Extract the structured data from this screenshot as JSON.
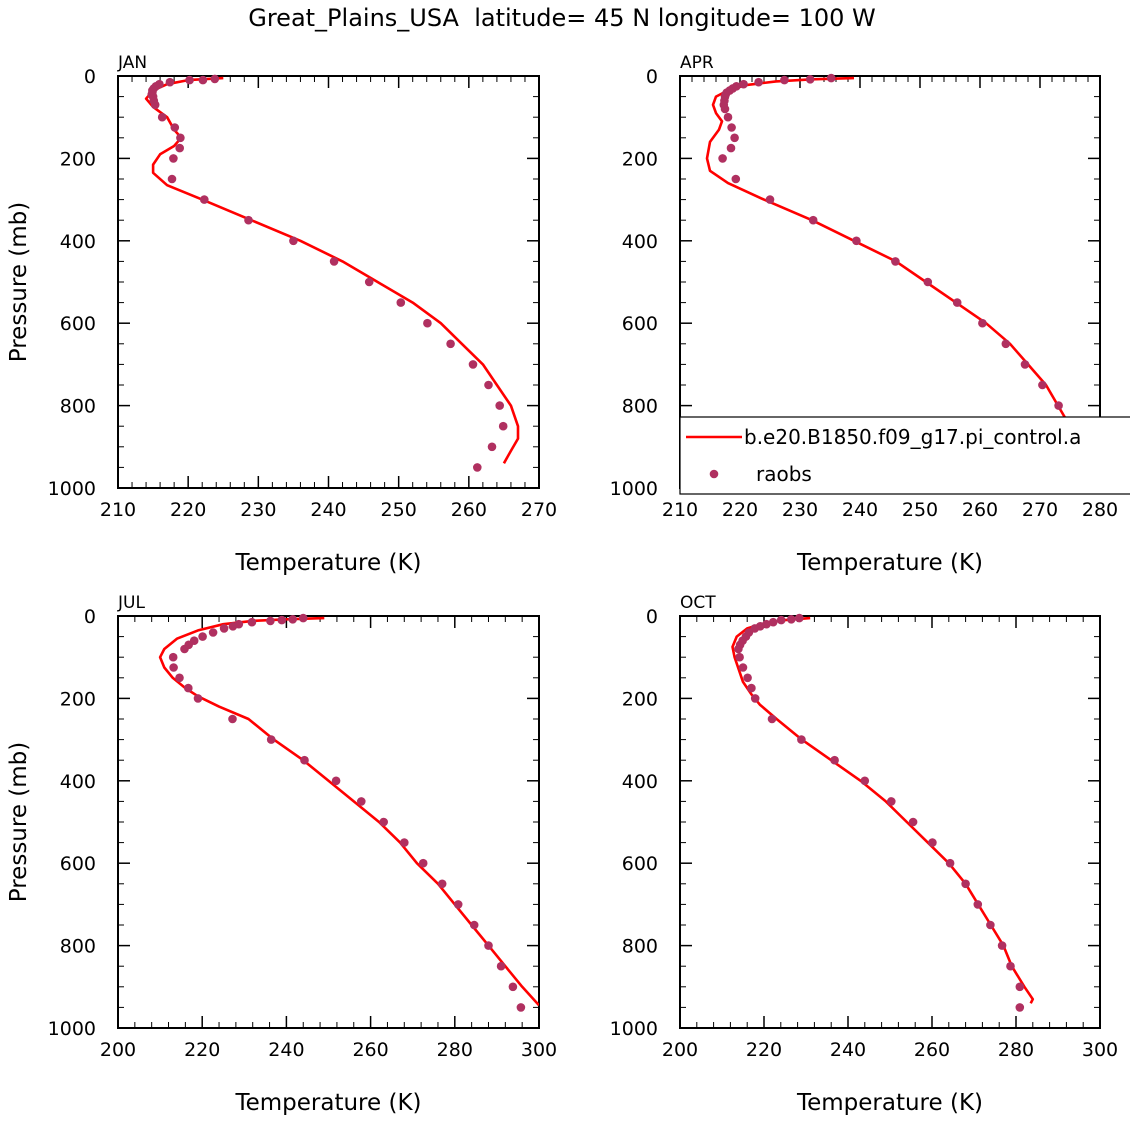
{
  "title": "Great_Plains_USA  latitude= 45 N longitude= 100 W",
  "colors": {
    "model": "#ff0000",
    "obs": "#b03060",
    "axis": "#000000"
  },
  "legend": {
    "model_label": "b.e20.B1850.f09_g17.pi_control.a",
    "obs_label": "raobs",
    "placement": "right of APR panel, near bottom"
  },
  "chart_data": [
    {
      "type": "line",
      "month": "JAN",
      "xlabel": "Temperature (K)",
      "ylabel": "Pressure (mb)",
      "xlim": [
        210,
        270
      ],
      "ylim": [
        1000,
        0
      ],
      "xticks": [
        "210",
        "220",
        "230",
        "240",
        "250",
        "260",
        "270"
      ],
      "yticks": [
        "0",
        "200",
        "400",
        "600",
        "800",
        "1000"
      ],
      "series": [
        {
          "name": "b.e20.B1850.f09_g17.pi_control.a",
          "kind": "line",
          "points": [
            [
              225,
              5
            ],
            [
              220,
              10
            ],
            [
              217,
              20
            ],
            [
              215,
              35
            ],
            [
              214,
              55
            ],
            [
              215,
              75
            ],
            [
              217,
              100
            ],
            [
              218,
              130
            ],
            [
              219,
              150
            ],
            [
              218,
              170
            ],
            [
              216,
              190
            ],
            [
              215,
              215
            ],
            [
              215,
              235
            ],
            [
              217,
              265
            ],
            [
              222,
              300
            ],
            [
              229,
              350
            ],
            [
              236,
              400
            ],
            [
              242,
              450
            ],
            [
              247,
              500
            ],
            [
              252,
              550
            ],
            [
              256,
              600
            ],
            [
              259,
              650
            ],
            [
              262,
              700
            ],
            [
              264,
              750
            ],
            [
              266,
              800
            ],
            [
              267,
              850
            ],
            [
              267,
              880
            ],
            [
              266,
              910
            ],
            [
              265,
              940
            ]
          ]
        },
        {
          "name": "raobs",
          "kind": "scatter",
          "points": [
            [
              223.8,
              7
            ],
            [
              222.1,
              10
            ],
            [
              220.2,
              10
            ],
            [
              217.4,
              15
            ],
            [
              215.9,
              20
            ],
            [
              215.4,
              25
            ],
            [
              215.1,
              30
            ],
            [
              214.9,
              35
            ],
            [
              214.9,
              40
            ],
            [
              214.8,
              45
            ],
            [
              215.0,
              50
            ],
            [
              215.1,
              60
            ],
            [
              215.3,
              70
            ],
            [
              216.3,
              100
            ],
            [
              218.1,
              125
            ],
            [
              218.9,
              150
            ],
            [
              218.8,
              175
            ],
            [
              217.9,
              200
            ],
            [
              217.7,
              250
            ],
            [
              222.3,
              300
            ],
            [
              228.6,
              350
            ],
            [
              235.0,
              400
            ],
            [
              240.8,
              450
            ],
            [
              245.8,
              500
            ],
            [
              250.3,
              550
            ],
            [
              254.1,
              600
            ],
            [
              257.4,
              650
            ],
            [
              260.6,
              700
            ],
            [
              262.8,
              750
            ],
            [
              264.4,
              800
            ],
            [
              264.9,
              850
            ],
            [
              263.3,
              900
            ],
            [
              261.2,
              950
            ]
          ]
        }
      ]
    },
    {
      "type": "line",
      "month": "APR",
      "xlabel": "Temperature (K)",
      "ylabel": "Pressure (mb)",
      "xlim": [
        210,
        280
      ],
      "ylim": [
        1000,
        0
      ],
      "xticks": [
        "210",
        "220",
        "230",
        "240",
        "250",
        "260",
        "270",
        "280"
      ],
      "yticks": [
        "0",
        "200",
        "400",
        "600",
        "800",
        "1000"
      ],
      "series": [
        {
          "name": "b.e20.B1850.f09_g17.pi_control.a",
          "kind": "line",
          "points": [
            [
              239,
              5
            ],
            [
              232,
              8
            ],
            [
              226,
              13
            ],
            [
              221,
              22
            ],
            [
              218,
              35
            ],
            [
              216,
              50
            ],
            [
              215.5,
              70
            ],
            [
              216,
              90
            ],
            [
              217,
              110
            ],
            [
              216.5,
              130
            ],
            [
              215,
              160
            ],
            [
              214.5,
              200
            ],
            [
              215,
              230
            ],
            [
              218,
              260
            ],
            [
              224,
              300
            ],
            [
              232,
              350
            ],
            [
              239,
              400
            ],
            [
              246,
              450
            ],
            [
              251,
              500
            ],
            [
              256,
              550
            ],
            [
              261,
              600
            ],
            [
              265,
              650
            ],
            [
              268,
              700
            ],
            [
              271,
              750
            ],
            [
              273,
              800
            ],
            [
              275,
              850
            ],
            [
              277,
              900
            ],
            [
              279,
              950
            ],
            [
              280,
              1000
            ]
          ]
        },
        {
          "name": "raobs",
          "kind": "scatter",
          "points": [
            [
              235.2,
              5
            ],
            [
              231.7,
              8
            ],
            [
              227.4,
              10
            ],
            [
              223.1,
              15
            ],
            [
              220.6,
              20
            ],
            [
              219.4,
              25
            ],
            [
              218.8,
              30
            ],
            [
              218.3,
              35
            ],
            [
              217.8,
              40
            ],
            [
              217.6,
              45
            ],
            [
              217.5,
              50
            ],
            [
              217.4,
              60
            ],
            [
              217.3,
              70
            ],
            [
              217.5,
              80
            ],
            [
              218.0,
              100
            ],
            [
              218.6,
              125
            ],
            [
              219.1,
              150
            ],
            [
              218.5,
              175
            ],
            [
              217.1,
              200
            ],
            [
              219.3,
              250
            ],
            [
              225.0,
              300
            ],
            [
              232.2,
              350
            ],
            [
              239.4,
              400
            ],
            [
              245.9,
              450
            ],
            [
              251.3,
              500
            ],
            [
              256.2,
              550
            ],
            [
              260.4,
              600
            ],
            [
              264.3,
              650
            ],
            [
              267.5,
              700
            ],
            [
              270.4,
              750
            ],
            [
              273.1,
              800
            ],
            [
              275.5,
              850
            ],
            [
              278.2,
              900
            ],
            [
              280.0,
              950
            ]
          ]
        }
      ]
    },
    {
      "type": "line",
      "month": "JUL",
      "xlabel": "Temperature (K)",
      "ylabel": "Pressure (mb)",
      "xlim": [
        200,
        300
      ],
      "ylim": [
        1000,
        0
      ],
      "xticks": [
        "200",
        "220",
        "240",
        "260",
        "280",
        "300"
      ],
      "yticks": [
        "0",
        "200",
        "400",
        "600",
        "800",
        "1000"
      ],
      "series": [
        {
          "name": "b.e20.B1850.f09_g17.pi_control.a",
          "kind": "line",
          "points": [
            [
              249,
              5
            ],
            [
              240,
              8
            ],
            [
              232,
              12
            ],
            [
              225,
              20
            ],
            [
              219,
              35
            ],
            [
              214,
              55
            ],
            [
              211,
              80
            ],
            [
              210,
              100
            ],
            [
              211,
              125
            ],
            [
              213,
              150
            ],
            [
              216,
              175
            ],
            [
              219,
              195
            ],
            [
              224,
              220
            ],
            [
              231,
              250
            ],
            [
              237,
              300
            ],
            [
              244,
              350
            ],
            [
              250,
              400
            ],
            [
              256,
              450
            ],
            [
              262,
              500
            ],
            [
              267,
              550
            ],
            [
              271,
              600
            ],
            [
              276,
              650
            ],
            [
              280,
              700
            ],
            [
              284,
              750
            ],
            [
              288,
              800
            ],
            [
              292,
              850
            ],
            [
              296,
              900
            ],
            [
              300,
              945
            ]
          ]
        },
        {
          "name": "raobs",
          "kind": "scatter",
          "points": [
            [
              244.0,
              5
            ],
            [
              241.5,
              8
            ],
            [
              238.9,
              10
            ],
            [
              236.2,
              12
            ],
            [
              231.8,
              15
            ],
            [
              228.7,
              20
            ],
            [
              227.3,
              25
            ],
            [
              225.2,
              30
            ],
            [
              222.6,
              40
            ],
            [
              220.1,
              50
            ],
            [
              218.1,
              60
            ],
            [
              216.8,
              70
            ],
            [
              215.8,
              80
            ],
            [
              213.1,
              100
            ],
            [
              213.2,
              125
            ],
            [
              214.6,
              150
            ],
            [
              216.7,
              175
            ],
            [
              219.0,
              200
            ],
            [
              227.2,
              250
            ],
            [
              236.4,
              300
            ],
            [
              244.3,
              350
            ],
            [
              251.8,
              400
            ],
            [
              257.8,
              450
            ],
            [
              263.1,
              500
            ],
            [
              268.0,
              550
            ],
            [
              272.5,
              600
            ],
            [
              277.0,
              650
            ],
            [
              280.8,
              700
            ],
            [
              284.6,
              750
            ],
            [
              288.0,
              800
            ],
            [
              291.0,
              850
            ],
            [
              293.8,
              900
            ],
            [
              295.7,
              950
            ]
          ]
        }
      ]
    },
    {
      "type": "line",
      "month": "OCT",
      "xlabel": "Temperature (K)",
      "ylabel": "Pressure (mb)",
      "xlim": [
        200,
        300
      ],
      "ylim": [
        1000,
        0
      ],
      "xticks": [
        "200",
        "220",
        "240",
        "260",
        "280",
        "300"
      ],
      "yticks": [
        "0",
        "200",
        "400",
        "600",
        "800",
        "1000"
      ],
      "series": [
        {
          "name": "b.e20.B1850.f09_g17.pi_control.a",
          "kind": "line",
          "points": [
            [
              231,
              5
            ],
            [
              225,
              10
            ],
            [
              220,
              18
            ],
            [
              216,
              30
            ],
            [
              213.5,
              50
            ],
            [
              212.5,
              75
            ],
            [
              213,
              100
            ],
            [
              214,
              130
            ],
            [
              215,
              160
            ],
            [
              217,
              190
            ],
            [
              219,
              215
            ],
            [
              223,
              250
            ],
            [
              229,
              300
            ],
            [
              236,
              350
            ],
            [
              243,
              400
            ],
            [
              249,
              450
            ],
            [
              254,
              500
            ],
            [
              259,
              550
            ],
            [
              264,
              600
            ],
            [
              268,
              650
            ],
            [
              271,
              700
            ],
            [
              274,
              750
            ],
            [
              277,
              800
            ],
            [
              279,
              850
            ],
            [
              282,
              900
            ],
            [
              284,
              930
            ],
            [
              283.5,
              940
            ]
          ]
        },
        {
          "name": "raobs",
          "kind": "scatter",
          "points": [
            [
              228.4,
              5
            ],
            [
              226.5,
              8
            ],
            [
              224.1,
              10
            ],
            [
              222.2,
              15
            ],
            [
              220.6,
              20
            ],
            [
              219.1,
              25
            ],
            [
              217.8,
              30
            ],
            [
              216.4,
              40
            ],
            [
              215.7,
              50
            ],
            [
              214.9,
              60
            ],
            [
              214.3,
              70
            ],
            [
              213.9,
              80
            ],
            [
              214.2,
              100
            ],
            [
              215.0,
              125
            ],
            [
              216.1,
              150
            ],
            [
              217.0,
              175
            ],
            [
              217.9,
              200
            ],
            [
              221.9,
              250
            ],
            [
              228.9,
              300
            ],
            [
              236.8,
              350
            ],
            [
              244.0,
              400
            ],
            [
              250.3,
              450
            ],
            [
              255.5,
              500
            ],
            [
              260.1,
              550
            ],
            [
              264.3,
              600
            ],
            [
              268.0,
              650
            ],
            [
              270.9,
              700
            ],
            [
              273.9,
              750
            ],
            [
              276.7,
              800
            ],
            [
              278.7,
              850
            ],
            [
              280.9,
              900
            ],
            [
              280.9,
              950
            ]
          ]
        }
      ]
    }
  ]
}
